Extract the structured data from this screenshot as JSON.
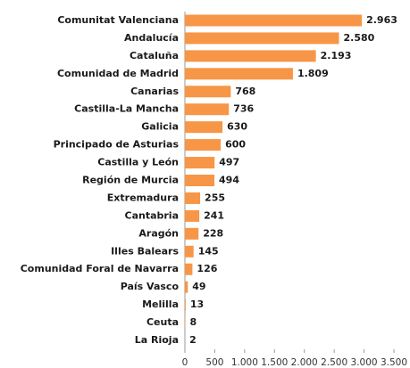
{
  "chart_data": {
    "type": "bar",
    "orientation": "horizontal",
    "categories": [
      "Comunitat Valenciana",
      "Andalucía",
      "Cataluña",
      "Comunidad de Madrid",
      "Canarias",
      "Castilla-La Mancha",
      "Galicia",
      "Principado de Asturias",
      "Castilla y León",
      "Región de Murcia",
      "Extremadura",
      "Cantabria",
      "Aragón",
      "Illes Balears",
      "Comunidad Foral de Navarra",
      "País Vasco",
      "Melilla",
      "Ceuta",
      "La Rioja"
    ],
    "values": [
      2963,
      2580,
      2193,
      1809,
      768,
      736,
      630,
      600,
      497,
      494,
      255,
      241,
      228,
      145,
      126,
      49,
      13,
      8,
      2
    ],
    "value_labels": [
      "2.963",
      "2.580",
      "2.193",
      "1.809",
      "768",
      "736",
      "630",
      "600",
      "497",
      "494",
      "255",
      "241",
      "228",
      "145",
      "126",
      "49",
      "13",
      "8",
      "2"
    ],
    "color": "#f79646",
    "xlim": [
      0,
      3500
    ],
    "xticks": [
      0,
      500,
      {
        "value": 1000,
        "label": "1.000"
      },
      {
        "value": 1500,
        "label": "1.500"
      },
      {
        "value": 2000,
        "label": "2.000"
      },
      {
        "value": 2500,
        "label": "2.500"
      },
      {
        "value": 3000,
        "label": "3.000"
      },
      {
        "value": 3500,
        "label": "3.500"
      }
    ],
    "grid": false
  }
}
